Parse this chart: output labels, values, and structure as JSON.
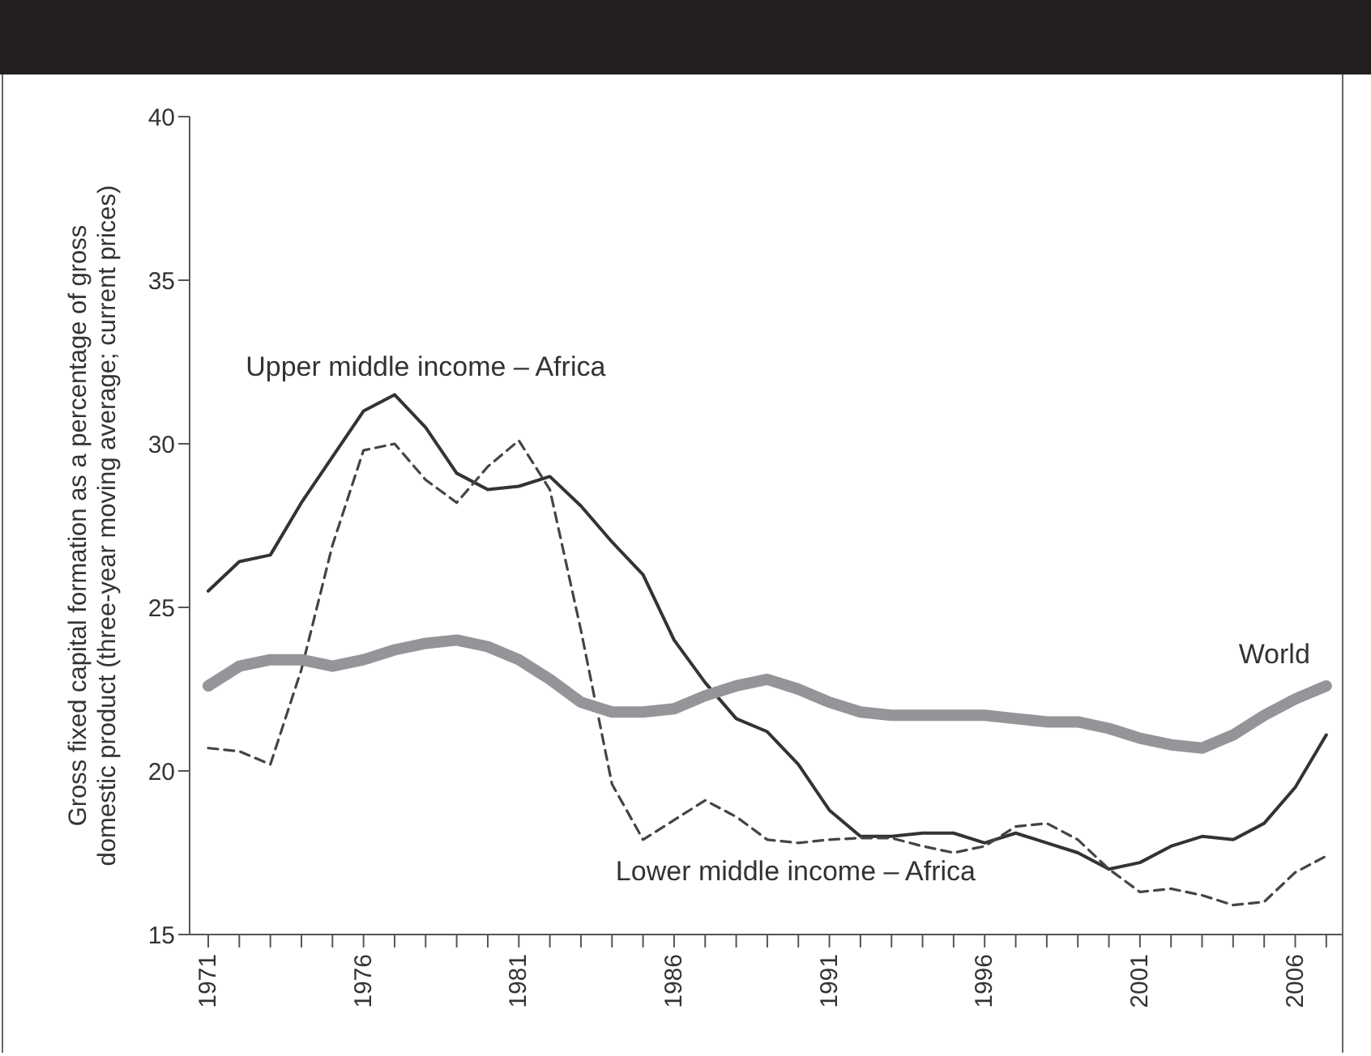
{
  "chart_data": {
    "type": "line",
    "ylabel": "Gross fixed capital formation as a percentage of gross domestic product (three-year moving average; current prices)",
    "x": [
      1971,
      1972,
      1973,
      1974,
      1975,
      1976,
      1977,
      1978,
      1979,
      1980,
      1981,
      1982,
      1983,
      1984,
      1985,
      1986,
      1987,
      1988,
      1989,
      1990,
      1991,
      1992,
      1993,
      1994,
      1995,
      1996,
      1997,
      1998,
      1999,
      2000,
      2001,
      2002,
      2003,
      2004,
      2005,
      2006,
      2007
    ],
    "series": [
      {
        "name": "Upper middle income – Africa",
        "color": "#333333",
        "line_style": "solid",
        "values": [
          25.5,
          26.4,
          26.6,
          28.2,
          29.6,
          31.0,
          31.5,
          30.5,
          29.1,
          28.6,
          28.7,
          29.0,
          28.1,
          27.0,
          26.0,
          24.0,
          22.7,
          21.6,
          21.2,
          20.2,
          18.8,
          18.0,
          18.0,
          18.1,
          18.1,
          17.8,
          18.1,
          17.8,
          17.5,
          17.0,
          17.2,
          17.7,
          18.0,
          17.9,
          18.4,
          19.5,
          21.1
        ]
      },
      {
        "name": "Lower middle income – Africa",
        "color": "#444444",
        "line_style": "dashed",
        "values": [
          20.7,
          20.6,
          20.2,
          23.1,
          26.9,
          29.8,
          30.0,
          28.9,
          28.2,
          29.3,
          30.1,
          28.6,
          24.3,
          19.6,
          17.9,
          18.5,
          19.1,
          18.6,
          17.9,
          17.8,
          17.9,
          17.95,
          17.95,
          17.7,
          17.5,
          17.7,
          18.3,
          18.4,
          17.9,
          17.0,
          16.3,
          16.4,
          16.2,
          15.9,
          16.0,
          16.9,
          17.4
        ]
      },
      {
        "name": "World",
        "color": "#939598",
        "line_style": "solid",
        "values": [
          22.6,
          23.2,
          23.4,
          23.4,
          23.2,
          23.4,
          23.7,
          23.9,
          24.0,
          23.8,
          23.4,
          22.8,
          22.1,
          21.8,
          21.8,
          21.9,
          22.3,
          22.6,
          22.8,
          22.5,
          22.1,
          21.8,
          21.7,
          21.7,
          21.7,
          21.7,
          21.6,
          21.5,
          21.5,
          21.3,
          21.0,
          20.8,
          20.7,
          21.1,
          21.7,
          22.2,
          22.6
        ]
      }
    ],
    "xlim": [
      1970.4,
      2007.5
    ],
    "xticks": [
      1971,
      {
        "value": 1972,
        "label": null
      },
      {
        "value": 1973,
        "label": null
      },
      {
        "value": 1974,
        "label": null
      },
      {
        "value": 1975,
        "label": null
      },
      1976,
      {
        "value": 1977,
        "label": null
      },
      {
        "value": 1978,
        "label": null
      },
      {
        "value": 1979,
        "label": null
      },
      {
        "value": 1980,
        "label": null
      },
      1981,
      {
        "value": 1982,
        "label": null
      },
      {
        "value": 1983,
        "label": null
      },
      {
        "value": 1984,
        "label": null
      },
      {
        "value": 1985,
        "label": null
      },
      1986,
      {
        "value": 1987,
        "label": null
      },
      {
        "value": 1988,
        "label": null
      },
      {
        "value": 1989,
        "label": null
      },
      {
        "value": 1990,
        "label": null
      },
      1991,
      {
        "value": 1992,
        "label": null
      },
      {
        "value": 1993,
        "label": null
      },
      {
        "value": 1994,
        "label": null
      },
      {
        "value": 1995,
        "label": null
      },
      1996,
      {
        "value": 1997,
        "label": null
      },
      {
        "value": 1998,
        "label": null
      },
      {
        "value": 1999,
        "label": null
      },
      {
        "value": 2000,
        "label": null
      },
      2001,
      {
        "value": 2002,
        "label": null
      },
      {
        "value": 2003,
        "label": null
      },
      {
        "value": 2004,
        "label": null
      },
      {
        "value": 2005,
        "label": null
      },
      2006,
      {
        "value": 2007,
        "label": null
      }
    ],
    "ylim": [
      15,
      40
    ],
    "yticks": [
      15,
      20,
      25,
      30,
      35,
      40
    ],
    "grid": false,
    "legend": false,
    "marker": "none"
  }
}
